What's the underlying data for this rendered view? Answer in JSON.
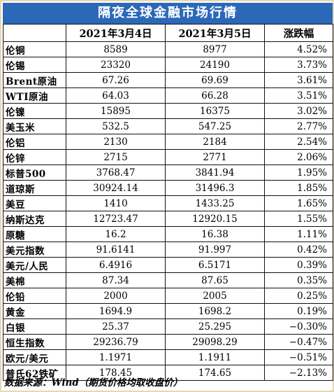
{
  "title": "隔夜全球金融市场行情",
  "columns": {
    "name": "",
    "date1": "2021年3月4日",
    "date2": "2021年3月5日",
    "change": "涨跌幅"
  },
  "rows": [
    {
      "name": "伦铜",
      "v1": "8589",
      "v2": "8977",
      "chg": "4.52%"
    },
    {
      "name": "伦锡",
      "v1": "23320",
      "v2": "24190",
      "chg": "3.73%"
    },
    {
      "name": "Brent原油",
      "v1": "67.26",
      "v2": "69.69",
      "chg": "3.61%"
    },
    {
      "name": "WTI原油",
      "v1": "64.03",
      "v2": "66.28",
      "chg": "3.51%"
    },
    {
      "name": "伦镍",
      "v1": "15895",
      "v2": "16375",
      "chg": "3.02%"
    },
    {
      "name": "美玉米",
      "v1": "532.5",
      "v2": "547.25",
      "chg": "2.77%"
    },
    {
      "name": "伦铝",
      "v1": "2130",
      "v2": "2184",
      "chg": "2.54%"
    },
    {
      "name": "伦锌",
      "v1": "2715",
      "v2": "2771",
      "chg": "2.06%"
    },
    {
      "name": "标普500",
      "v1": "3768.47",
      "v2": "3841.94",
      "chg": "1.95%"
    },
    {
      "name": "道琼斯",
      "v1": "30924.14",
      "v2": "31496.3",
      "chg": "1.85%"
    },
    {
      "name": "美豆",
      "v1": "1410",
      "v2": "1433.25",
      "chg": "1.65%"
    },
    {
      "name": "纳斯达克",
      "v1": "12723.47",
      "v2": "12920.15",
      "chg": "1.55%"
    },
    {
      "name": "原糖",
      "v1": "16.2",
      "v2": "16.38",
      "chg": "1.11%"
    },
    {
      "name": "美元指数",
      "v1": "91.6141",
      "v2": "91.997",
      "chg": "0.42%"
    },
    {
      "name": "美元/人民",
      "v1": "6.4916",
      "v2": "6.5171",
      "chg": "0.39%"
    },
    {
      "name": "美棉",
      "v1": "87.34",
      "v2": "87.65",
      "chg": "0.35%"
    },
    {
      "name": "伦铅",
      "v1": "2000",
      "v2": "2005",
      "chg": "0.25%"
    },
    {
      "name": "黄金",
      "v1": "1694.9",
      "v2": "1698.2",
      "chg": "0.19%"
    },
    {
      "name": "白银",
      "v1": "25.37",
      "v2": "25.295",
      "chg": "−0.30%"
    },
    {
      "name": "恒生指数",
      "v1": "29236.79",
      "v2": "29098.29",
      "chg": "−0.47%"
    },
    {
      "name": "欧元/美元",
      "v1": "1.1971",
      "v2": "1.1911",
      "chg": "−0.51%"
    },
    {
      "name": "普氏62铁矿",
      "v1": "178.45",
      "v2": "174.65",
      "chg": "−2.13%"
    }
  ],
  "source": "数据来源：Wind（期货价格均取收盘价）",
  "colors": {
    "title_bg": "#2b68b8",
    "title_text": "#ffffff",
    "outer_border": "#e7d8b4",
    "grid": "#111111"
  }
}
